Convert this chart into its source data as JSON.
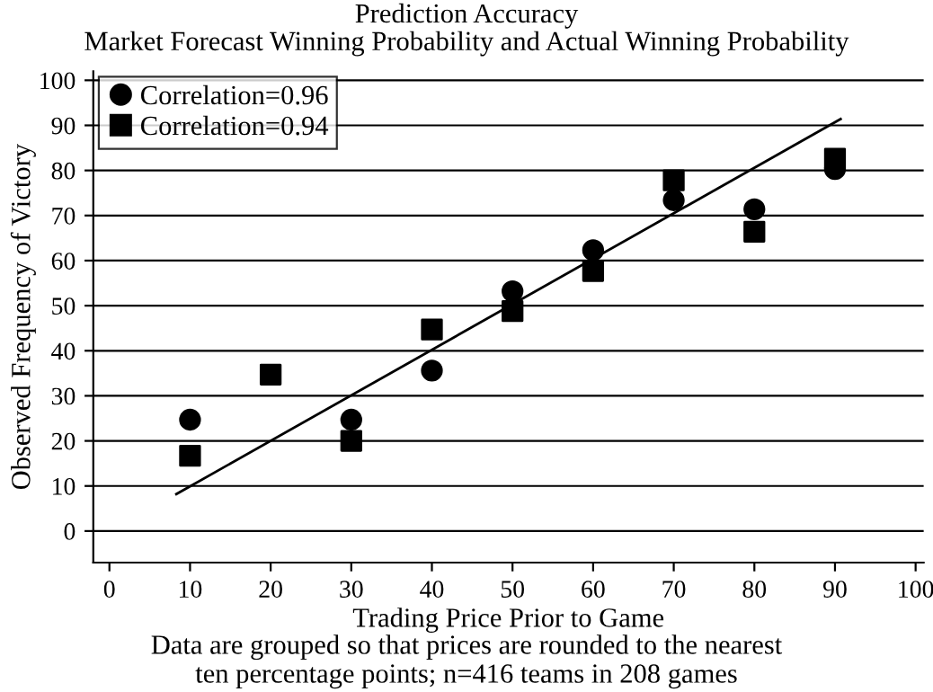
{
  "chart_data": {
    "type": "scatter",
    "title": "Prediction Accuracy",
    "subtitle": "Market Forecast Winning Probability and Actual Winning Probability",
    "xlabel": "Trading Price Prior to Game",
    "ylabel": "Observed Frequency of Victory",
    "annotations": [
      "Data are grouped so that prices are rounded to the nearest\nten percentage points; n=416 teams in 208 games"
    ],
    "x": [
      10,
      20,
      30,
      40,
      50,
      60,
      70,
      80,
      90
    ],
    "series": [
      {
        "name": "Correlation=0.96",
        "color": "#000000",
        "marker": "circle",
        "values": [
          24.7,
          null,
          24.7,
          35.6,
          53.2,
          62.3,
          73.4,
          71.4,
          80.3
        ]
      },
      {
        "name": "Correlation=0.94",
        "color": "#000000",
        "marker": "square",
        "values": [
          16.7,
          34.7,
          20,
          44.7,
          48.8,
          57.7,
          77.8,
          66.4,
          82.6
        ]
      },
      {
        "type": "line",
        "color": "#000000",
        "x": [
          8.3,
          90.7
        ],
        "values": [
          8.2,
          91.4
        ],
        "marker": "none",
        "line_style": "solid"
      }
    ],
    "xlim": [
      -2,
      101
    ],
    "ylim": [
      -7,
      102
    ],
    "xticks": [
      0,
      10,
      20,
      30,
      40,
      50,
      60,
      70,
      80,
      90,
      100
    ],
    "yticks": [
      0,
      10,
      20,
      30,
      40,
      50,
      60,
      70,
      80,
      90,
      100
    ],
    "grid": "y",
    "legend": "top left"
  }
}
